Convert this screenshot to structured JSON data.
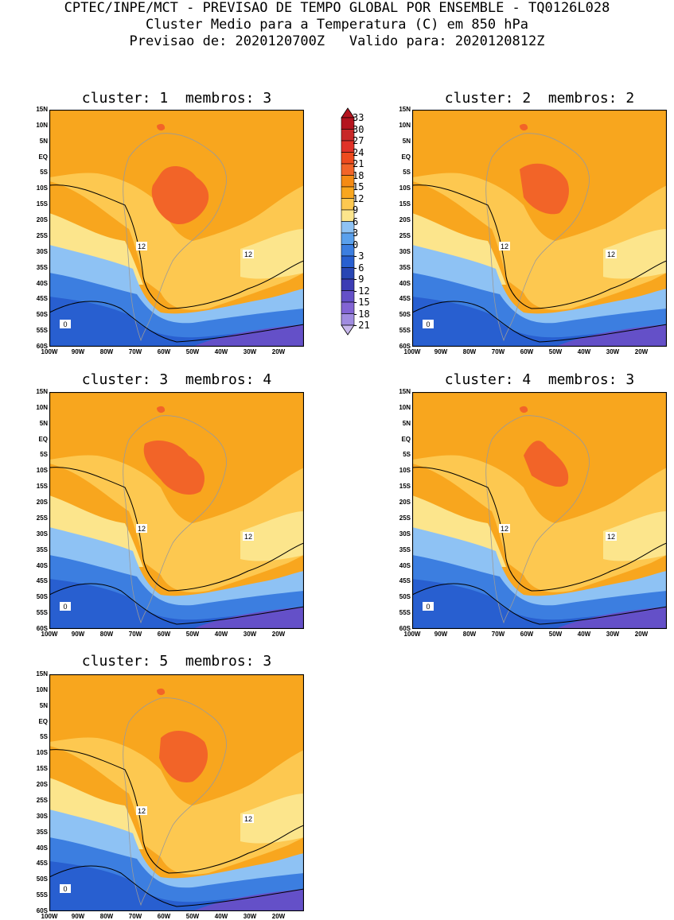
{
  "header": {
    "line1": "CPTEC/INPE/MCT - PREVISAO DE TEMPO GLOBAL POR ENSEMBLE - TQ0126L028",
    "line2": "Cluster Medio para a Temperatura (C) em 850 hPa",
    "line3": "Previsao de: 2020120700Z   Valido para: 2020120812Z"
  },
  "panels": [
    {
      "title": "cluster: 1  membros: 3"
    },
    {
      "title": "cluster: 2  membros: 2"
    },
    {
      "title": "cluster: 3  membros: 4"
    },
    {
      "title": "cluster: 4  membros: 3"
    },
    {
      "title": "cluster: 5  membros: 3"
    }
  ],
  "lat_labels": [
    "15N",
    "10N",
    "5N",
    "EQ",
    "5S",
    "10S",
    "15S",
    "20S",
    "25S",
    "30S",
    "35S",
    "40S",
    "45S",
    "50S",
    "55S",
    "60S"
  ],
  "lon_labels": [
    "100W",
    "90W",
    "80W",
    "70W",
    "60W",
    "50W",
    "40W",
    "30W",
    "20W"
  ],
  "colorbar": {
    "labels": [
      "33",
      "30",
      "27",
      "24",
      "21",
      "18",
      "15",
      "12",
      "9",
      "6",
      "3",
      "0",
      "-3",
      "-6",
      "-9",
      "-12",
      "-15",
      "-18",
      "-21"
    ],
    "colors": [
      "#b4141e",
      "#c82828",
      "#e03228",
      "#ee4b1e",
      "#f26428",
      "#f58b14",
      "#f8a61e",
      "#fdc850",
      "#fce58c",
      "#8ec2f4",
      "#5aa0ec",
      "#3c7ee0",
      "#285fd0",
      "#2846b4",
      "#3c3cb4",
      "#6450c8",
      "#8264d4",
      "#a08ce0",
      "#c8b8ec"
    ],
    "unit": "C"
  },
  "contour_labels": [
    "12",
    "0"
  ],
  "colors": {
    "warm_high": "#f26428",
    "warm": "#f8a61e",
    "mild": "#fdc850",
    "pale": "#fce58c",
    "cool": "#8ec2f4",
    "cold": "#3c7ee0",
    "deep": "#285fd0",
    "polar": "#6450c8"
  }
}
